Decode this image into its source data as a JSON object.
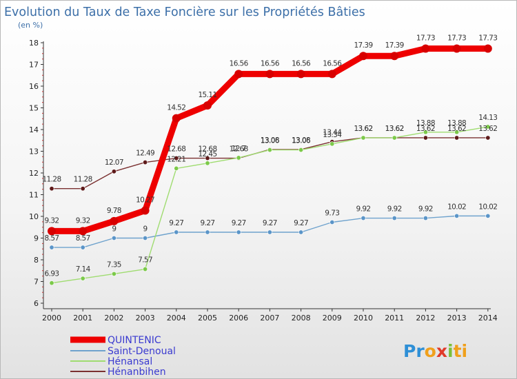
{
  "title": "Evolution du Taux de Taxe Foncière sur les Propriétés Bâties",
  "unit_label": "(en %)",
  "logo_text": "Proxiti",
  "chart_data": {
    "type": "line",
    "title": "Evolution du Taux de Taxe Foncière sur les Propriétés Bâties",
    "ylabel": "(en %)",
    "xlabel": "",
    "x": [
      "2000",
      "2001",
      "2002",
      "2003",
      "2004",
      "2005",
      "2006",
      "2007",
      "2008",
      "2009",
      "2010",
      "2011",
      "2012",
      "2013",
      "2014"
    ],
    "ylim": [
      6,
      18
    ],
    "yticks": [
      "6",
      "7",
      "8",
      "9",
      "10",
      "11",
      "12",
      "13",
      "14",
      "15",
      "16",
      "17",
      "18"
    ],
    "grid": false,
    "legend_position": "bottom-left",
    "series": [
      {
        "name": "QUINTENIC",
        "color": "#ee0000",
        "marker": "#d80000",
        "width": 9,
        "values": [
          9.32,
          9.32,
          9.78,
          10.27,
          14.52,
          15.11,
          16.56,
          16.56,
          16.56,
          16.56,
          17.39,
          17.39,
          17.73,
          17.73,
          17.73
        ],
        "labels": [
          "9.32",
          "9.32",
          "9.78",
          "10.27",
          "14.52",
          "15.11",
          "16.56",
          "16.56",
          "16.56",
          "16.56",
          "17.39",
          "17.39",
          "17.73",
          "17.73",
          "17.73"
        ]
      },
      {
        "name": "Saint-Denoual",
        "color": "#6ea2cd",
        "marker": "#5b95c8",
        "width": 1.4,
        "values": [
          8.57,
          8.57,
          9,
          9,
          9.27,
          9.27,
          9.27,
          9.27,
          9.27,
          9.73,
          9.92,
          9.92,
          9.92,
          10.02,
          10.02
        ],
        "labels": [
          "8.57",
          "8.57",
          "9",
          "9",
          "9.27",
          "9.27",
          "9.27",
          "9.27",
          "9.27",
          "9.73",
          "9.92",
          "9.92",
          "9.92",
          "10.02",
          "10.02"
        ]
      },
      {
        "name": "Hénansal",
        "color": "#9fdc70",
        "marker": "#7cc94a",
        "width": 1.4,
        "values": [
          6.93,
          7.14,
          7.35,
          7.57,
          12.21,
          12.45,
          12.7,
          13.06,
          13.06,
          13.34,
          13.62,
          13.62,
          13.88,
          13.88,
          14.13
        ],
        "labels": [
          "6.93",
          "7.14",
          "7.35",
          "7.57",
          "12.21",
          "12.45",
          "12.7",
          "13.06",
          "13.06",
          "13.34",
          "13.62",
          "13.62",
          "13.88",
          "13.88",
          "14.13"
        ]
      },
      {
        "name": "Hénanbihen",
        "color": "#7a3030",
        "marker": "#5e1a1a",
        "width": 1.4,
        "values": [
          11.28,
          11.28,
          12.07,
          12.49,
          12.68,
          12.68,
          12.68,
          13.08,
          13.08,
          13.44,
          13.62,
          13.62,
          13.62,
          13.62,
          13.62
        ],
        "labels": [
          "11.28",
          "11.28",
          "12.07",
          "12.49",
          "12.68",
          "12.68",
          "12.68",
          "13.08",
          "13.08",
          "13.44",
          "13.62",
          "13.62",
          "13.62",
          "13.62",
          "13.62"
        ]
      }
    ]
  }
}
